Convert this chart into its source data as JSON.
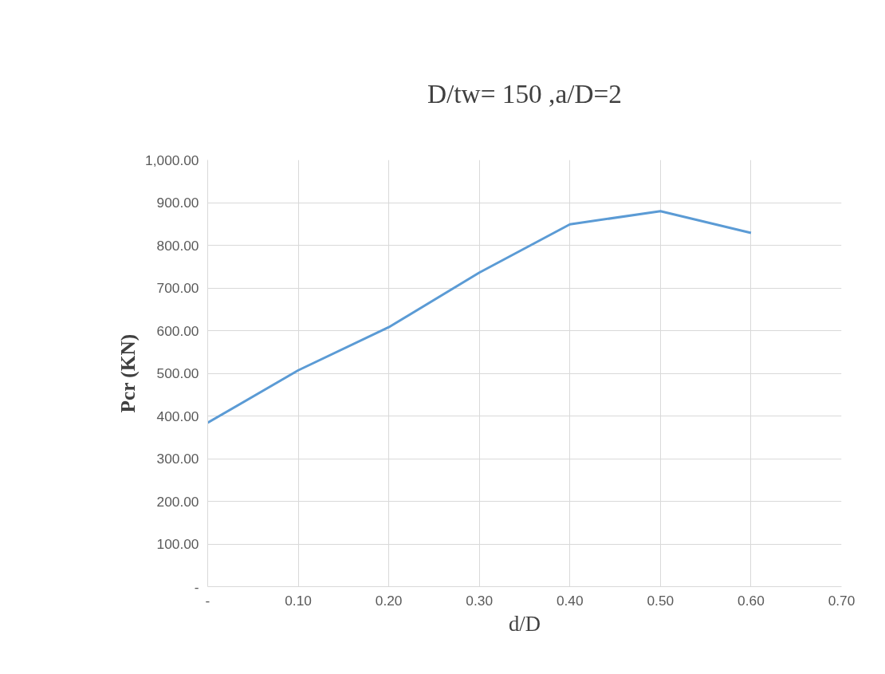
{
  "chart_data": {
    "type": "line",
    "title": "D/tw= 150 ,a/D=2",
    "xlabel": "d/D",
    "ylabel": "Pcr (KN)",
    "x": [
      0,
      0.1,
      0.2,
      0.3,
      0.4,
      0.5,
      0.6
    ],
    "series": [
      {
        "color": "#5b9bd5",
        "values": [
          384,
          507,
          608,
          736,
          849,
          880,
          829
        ]
      }
    ],
    "xlim": [
      0,
      0.7
    ],
    "xticks": [
      {
        "value": 0,
        "label": "-"
      },
      {
        "value": 0.1,
        "label": "0.10"
      },
      {
        "value": 0.2,
        "label": "0.20"
      },
      {
        "value": 0.3,
        "label": "0.30"
      },
      {
        "value": 0.4,
        "label": "0.40"
      },
      {
        "value": 0.5,
        "label": "0.50"
      },
      {
        "value": 0.6,
        "label": "0.60"
      },
      {
        "value": 0.7,
        "label": "0.70"
      }
    ],
    "ylim": [
      0,
      1000
    ],
    "yticks": [
      {
        "value": 0,
        "label": "-"
      },
      {
        "value": 100,
        "label": "100.00"
      },
      {
        "value": 200,
        "label": "200.00"
      },
      {
        "value": 300,
        "label": "300.00"
      },
      {
        "value": 400,
        "label": "400.00"
      },
      {
        "value": 500,
        "label": "500.00"
      },
      {
        "value": 600,
        "label": "600.00"
      },
      {
        "value": 700,
        "label": "700.00"
      },
      {
        "value": 800,
        "label": "800.00"
      },
      {
        "value": 900,
        "label": "900.00"
      },
      {
        "value": 1000,
        "label": "1,000.00"
      }
    ],
    "grid": true,
    "marker": "none",
    "line_style": "solid"
  }
}
